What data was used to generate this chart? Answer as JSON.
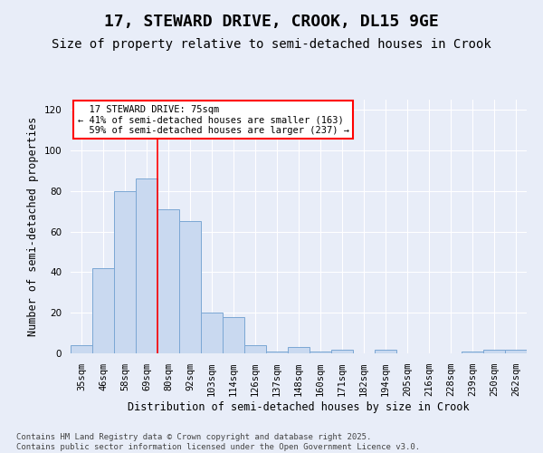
{
  "title": "17, STEWARD DRIVE, CROOK, DL15 9GE",
  "subtitle": "Size of property relative to semi-detached houses in Crook",
  "xlabel": "Distribution of semi-detached houses by size in Crook",
  "ylabel": "Number of semi-detached properties",
  "categories": [
    "35sqm",
    "46sqm",
    "58sqm",
    "69sqm",
    "80sqm",
    "92sqm",
    "103sqm",
    "114sqm",
    "126sqm",
    "137sqm",
    "148sqm",
    "160sqm",
    "171sqm",
    "182sqm",
    "194sqm",
    "205sqm",
    "216sqm",
    "228sqm",
    "239sqm",
    "250sqm",
    "262sqm"
  ],
  "values": [
    4,
    42,
    80,
    86,
    71,
    65,
    20,
    18,
    4,
    1,
    3,
    1,
    2,
    0,
    2,
    0,
    0,
    0,
    1,
    2,
    2
  ],
  "bar_color": "#c9d9f0",
  "bar_edge_color": "#7ba7d4",
  "property_line_idx": 3,
  "property_line_label": "17 STEWARD DRIVE: 75sqm",
  "smaller_pct": 41,
  "smaller_count": 163,
  "larger_pct": 59,
  "larger_count": 237,
  "ylim": [
    0,
    125
  ],
  "yticks": [
    0,
    20,
    40,
    60,
    80,
    100,
    120
  ],
  "background_color": "#e8edf8",
  "grid_color": "#ffffff",
  "footer_line1": "Contains HM Land Registry data © Crown copyright and database right 2025.",
  "footer_line2": "Contains public sector information licensed under the Open Government Licence v3.0.",
  "title_fontsize": 13,
  "subtitle_fontsize": 10,
  "axis_label_fontsize": 8.5,
  "tick_fontsize": 7.5,
  "annotation_fontsize": 7.5,
  "footer_fontsize": 6.5
}
